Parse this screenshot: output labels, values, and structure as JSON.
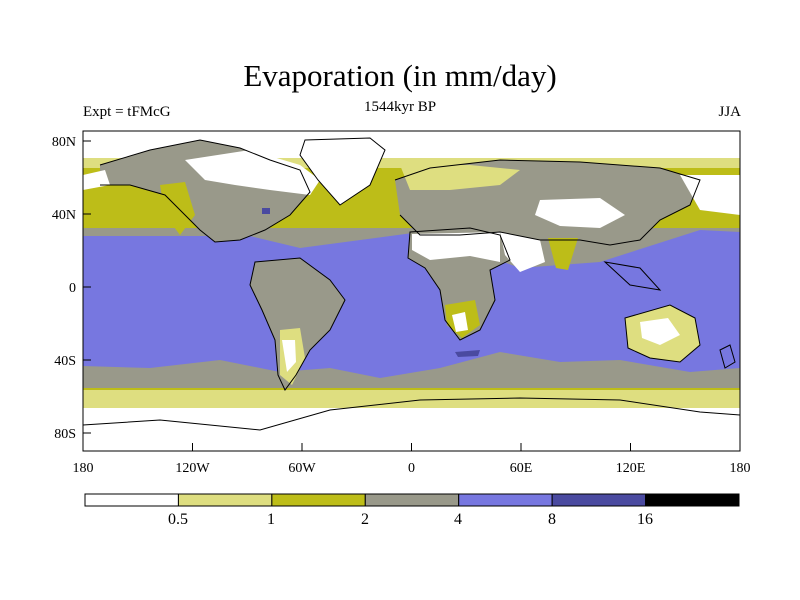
{
  "header": {
    "title": "Evaporation (in mm/day)",
    "left": "Expt = tFMcG",
    "center": "1544kyr BP",
    "right": "JJA"
  },
  "axes": {
    "lon_ticks": [
      "180",
      "120W",
      "60W",
      "0",
      "60E",
      "120E",
      "180"
    ],
    "lat_ticks": [
      "80N",
      "40N",
      "0",
      "40S",
      "80S"
    ]
  },
  "colorbar": {
    "levels": [
      "0.5",
      "1",
      "2",
      "4",
      "8",
      "16"
    ],
    "colors": [
      "#ffffff",
      "#dede80",
      "#bdbd18",
      "#99998a",
      "#7777e0",
      "#4a4aa0",
      "#000000"
    ]
  },
  "map_colors": {
    "low": "#ffffff",
    "c1": "#dede80",
    "c2": "#bdbd18",
    "c4": "#99998a",
    "c8": "#7777e0",
    "c16": "#4a4aa0",
    "coast": "#000000"
  }
}
